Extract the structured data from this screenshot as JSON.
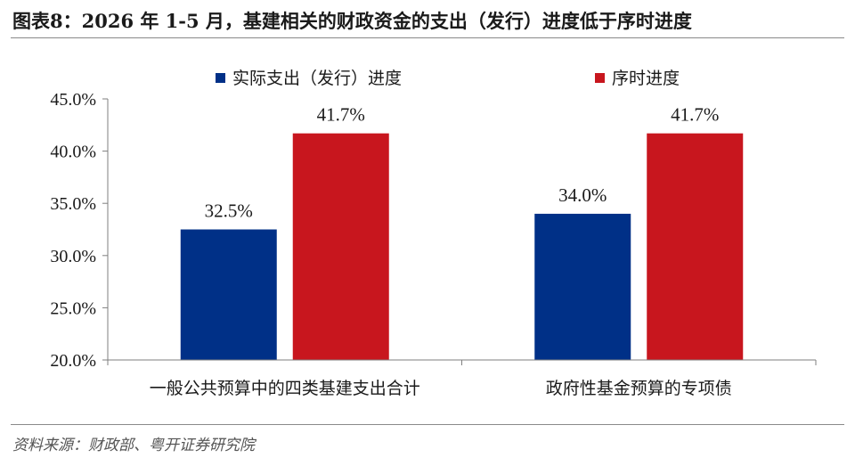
{
  "figure": {
    "title": "图表8：2026 年 1-5 月，基建相关的财政资金的支出（发行）进度低于序时进度",
    "source": "资料来源：财政部、粤开证券研究院"
  },
  "chart_data": {
    "type": "bar",
    "categories": [
      "一般公共预算中的四类基建支出合计",
      "政府性基金预算的专项债"
    ],
    "series": [
      {
        "name": "实际支出（发行）进度",
        "values": [
          32.5,
          34.0
        ],
        "labels": [
          "32.5%",
          "34.0%"
        ],
        "color": "#003087"
      },
      {
        "name": "序时进度",
        "values": [
          41.7,
          41.7
        ],
        "labels": [
          "41.7%",
          "41.7%"
        ],
        "color": "#c8161e"
      }
    ],
    "ylim": [
      20,
      45
    ],
    "yticks": [
      20,
      25,
      30,
      35,
      40,
      45
    ],
    "ytick_labels": [
      "20.0%",
      "25.0%",
      "30.0%",
      "35.0%",
      "40.0%",
      "45.0%"
    ],
    "legend_position": "top",
    "grid": false
  }
}
